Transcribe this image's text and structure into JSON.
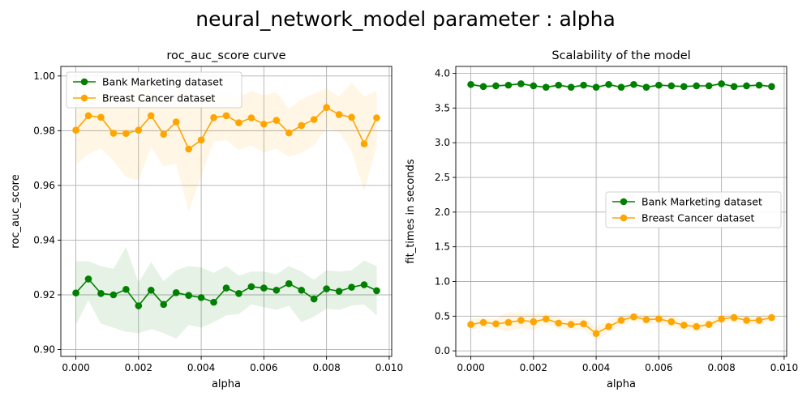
{
  "suptitle": "neural_network_model parameter : alpha",
  "colors": {
    "bank": "#008000",
    "breast": "#ffa500"
  },
  "chart_data": [
    {
      "type": "line",
      "title": "roc_auc_score curve",
      "xlabel": "alpha",
      "ylabel": "roc_auc_score",
      "xlim": [
        -0.00048,
        0.01008
      ],
      "ylim": [
        0.8975,
        1.0035
      ],
      "xticks": [
        0.0,
        0.002,
        0.004,
        0.006,
        0.008,
        0.01
      ],
      "xtick_labels": [
        "0.000",
        "0.002",
        "0.004",
        "0.006",
        "0.008",
        "0.010"
      ],
      "yticks": [
        0.9,
        0.92,
        0.94,
        0.96,
        0.98,
        1.0
      ],
      "ytick_labels": [
        "0.90",
        "0.92",
        "0.94",
        "0.96",
        "0.98",
        "1.00"
      ],
      "grid": true,
      "legend": "upper-left",
      "x": [
        0.0,
        0.0004,
        0.0008,
        0.0012,
        0.0016,
        0.002,
        0.0024,
        0.0028,
        0.0032,
        0.0036,
        0.004,
        0.0044,
        0.0048,
        0.0052,
        0.0056,
        0.006,
        0.0064,
        0.0068,
        0.0072,
        0.0076,
        0.008,
        0.0084,
        0.0088,
        0.0092,
        0.0096
      ],
      "series": [
        {
          "name": "Bank Marketing dataset",
          "values": [
            0.9207,
            0.9258,
            0.9205,
            0.92,
            0.922,
            0.916,
            0.9217,
            0.9165,
            0.9208,
            0.9198,
            0.919,
            0.9173,
            0.9225,
            0.9205,
            0.923,
            0.9225,
            0.9217,
            0.9241,
            0.9217,
            0.9185,
            0.9222,
            0.9213,
            0.9228,
            0.9237,
            0.9215
          ],
          "lower": [
            0.909,
            0.918,
            0.9095,
            0.908,
            0.9065,
            0.906,
            0.9075,
            0.906,
            0.904,
            0.909,
            0.908,
            0.91,
            0.9125,
            0.913,
            0.9165,
            0.9155,
            0.9145,
            0.916,
            0.91,
            0.912,
            0.915,
            0.9145,
            0.916,
            0.9165,
            0.9125
          ],
          "upper": [
            0.9323,
            0.9323,
            0.9305,
            0.9295,
            0.9375,
            0.9245,
            0.932,
            0.925,
            0.929,
            0.9305,
            0.93,
            0.928,
            0.9305,
            0.927,
            0.9285,
            0.9285,
            0.9275,
            0.9305,
            0.9285,
            0.9255,
            0.929,
            0.9285,
            0.929,
            0.9325,
            0.9305
          ]
        },
        {
          "name": "Breast Cancer dataset",
          "values": [
            0.9802,
            0.9855,
            0.9849,
            0.9791,
            0.979,
            0.9802,
            0.9855,
            0.9787,
            0.9832,
            0.9733,
            0.9766,
            0.9848,
            0.9855,
            0.9829,
            0.9847,
            0.9824,
            0.9838,
            0.9792,
            0.9819,
            0.9841,
            0.9885,
            0.9859,
            0.9849,
            0.9752,
            0.9847
          ],
          "lower": [
            0.9675,
            0.9715,
            0.9735,
            0.969,
            0.963,
            0.962,
            0.974,
            0.967,
            0.968,
            0.9505,
            0.9635,
            0.976,
            0.9765,
            0.973,
            0.9745,
            0.972,
            0.9735,
            0.9705,
            0.972,
            0.9745,
            0.981,
            0.9795,
            0.9725,
            0.958,
            0.9745
          ],
          "upper": [
            0.9925,
            0.9965,
            0.9955,
            0.9895,
            0.9955,
            0.998,
            0.9965,
            0.99,
            0.997,
            0.996,
            0.9895,
            0.9935,
            0.9945,
            0.9925,
            0.9945,
            0.993,
            0.994,
            0.988,
            0.9915,
            0.9935,
            0.9955,
            0.9925,
            0.9975,
            0.9925,
            0.9945
          ]
        }
      ]
    },
    {
      "type": "line",
      "title": "Scalability of the model",
      "xlabel": "alpha",
      "ylabel": "fit_times in seconds",
      "xlim": [
        -0.00048,
        0.01008
      ],
      "ylim": [
        -0.08,
        4.1
      ],
      "xticks": [
        0.0,
        0.002,
        0.004,
        0.006,
        0.008,
        0.01
      ],
      "xtick_labels": [
        "0.000",
        "0.002",
        "0.004",
        "0.006",
        "0.008",
        "0.010"
      ],
      "yticks": [
        0.0,
        0.5,
        1.0,
        1.5,
        2.0,
        2.5,
        3.0,
        3.5,
        4.0
      ],
      "ytick_labels": [
        "0.0",
        "0.5",
        "1.0",
        "1.5",
        "2.0",
        "2.5",
        "3.0",
        "3.5",
        "4.0"
      ],
      "grid": true,
      "legend": "center-right",
      "x": [
        0.0,
        0.0004,
        0.0008,
        0.0012,
        0.0016,
        0.002,
        0.0024,
        0.0028,
        0.0032,
        0.0036,
        0.004,
        0.0044,
        0.0048,
        0.0052,
        0.0056,
        0.006,
        0.0064,
        0.0068,
        0.0072,
        0.0076,
        0.008,
        0.0084,
        0.0088,
        0.0092,
        0.0096
      ],
      "series": [
        {
          "name": "Bank Marketing dataset",
          "values": [
            3.84,
            3.81,
            3.82,
            3.83,
            3.85,
            3.82,
            3.8,
            3.83,
            3.8,
            3.83,
            3.8,
            3.84,
            3.8,
            3.84,
            3.8,
            3.83,
            3.82,
            3.81,
            3.82,
            3.82,
            3.85,
            3.81,
            3.82,
            3.83,
            3.81
          ],
          "lower": [
            3.82,
            3.79,
            3.8,
            3.81,
            3.83,
            3.8,
            3.78,
            3.81,
            3.78,
            3.81,
            3.78,
            3.82,
            3.78,
            3.82,
            3.78,
            3.81,
            3.8,
            3.79,
            3.8,
            3.8,
            3.83,
            3.79,
            3.8,
            3.81,
            3.79
          ],
          "upper": [
            3.86,
            3.83,
            3.84,
            3.85,
            3.87,
            3.84,
            3.82,
            3.85,
            3.82,
            3.85,
            3.82,
            3.86,
            3.82,
            3.86,
            3.82,
            3.85,
            3.84,
            3.83,
            3.84,
            3.84,
            3.87,
            3.83,
            3.84,
            3.85,
            3.83
          ]
        },
        {
          "name": "Breast Cancer dataset",
          "values": [
            0.38,
            0.41,
            0.39,
            0.41,
            0.44,
            0.42,
            0.46,
            0.4,
            0.38,
            0.39,
            0.25,
            0.35,
            0.44,
            0.49,
            0.45,
            0.46,
            0.42,
            0.37,
            0.35,
            0.38,
            0.46,
            0.48,
            0.44,
            0.44,
            0.48
          ],
          "lower": [
            0.3,
            0.34,
            0.32,
            0.28,
            0.33,
            0.3,
            0.38,
            0.32,
            0.3,
            0.31,
            0.15,
            0.27,
            0.36,
            0.43,
            0.38,
            0.39,
            0.34,
            0.3,
            0.28,
            0.31,
            0.4,
            0.42,
            0.37,
            0.37,
            0.43
          ],
          "upper": [
            0.46,
            0.48,
            0.46,
            0.56,
            0.55,
            0.54,
            0.54,
            0.48,
            0.46,
            0.47,
            0.35,
            0.43,
            0.52,
            0.55,
            0.52,
            0.53,
            0.5,
            0.44,
            0.42,
            0.45,
            0.52,
            0.54,
            0.51,
            0.51,
            0.53
          ]
        }
      ]
    }
  ]
}
